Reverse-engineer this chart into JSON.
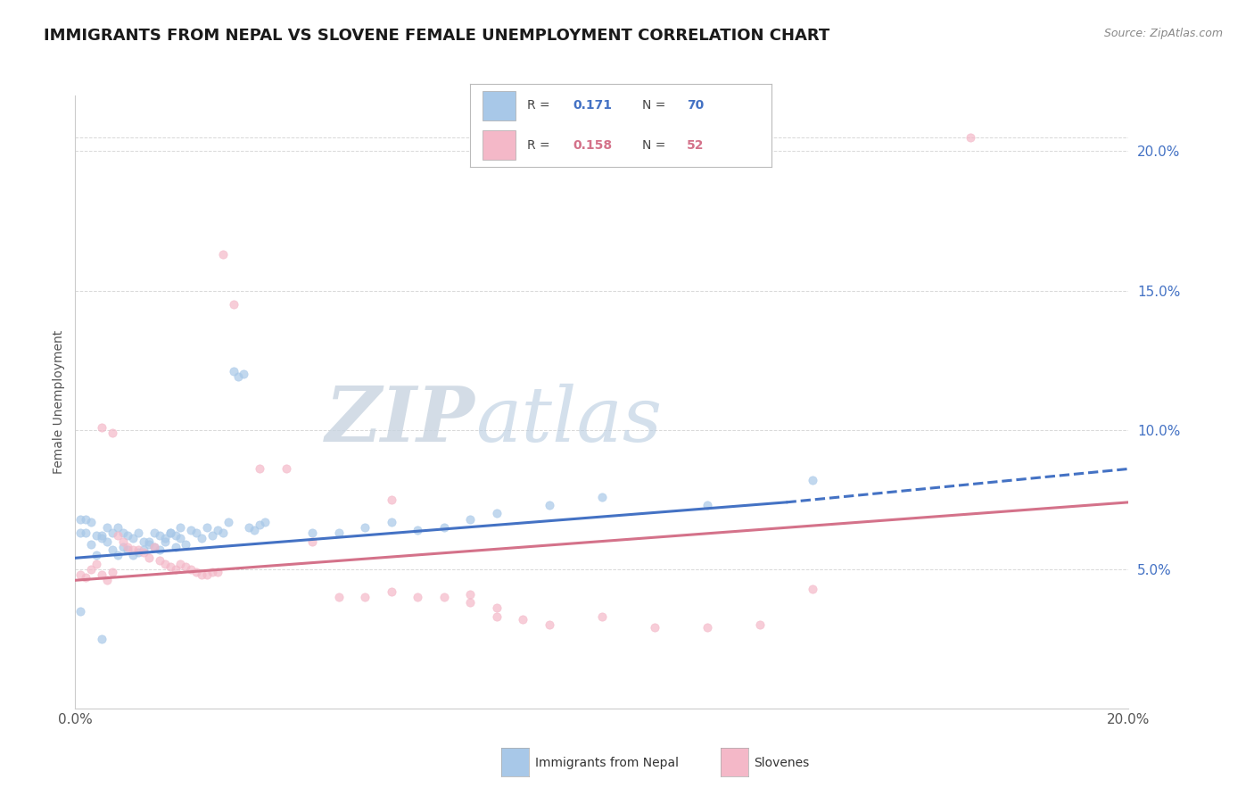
{
  "title": "IMMIGRANTS FROM NEPAL VS SLOVENE FEMALE UNEMPLOYMENT CORRELATION CHART",
  "source": "Source: ZipAtlas.com",
  "ylabel": "Female Unemployment",
  "legend_items": [
    {
      "label": "Immigrants from Nepal",
      "color": "#a8c8e8",
      "R": "0.171",
      "N": "70"
    },
    {
      "label": "Slovenes",
      "color": "#f4b8c8",
      "R": "0.158",
      "N": "52"
    }
  ],
  "watermark_zip": "ZIP",
  "watermark_atlas": "atlas",
  "xmin": 0.0,
  "xmax": 0.2,
  "ymin": 0.0,
  "ymax": 0.22,
  "yticks": [
    0.05,
    0.1,
    0.15,
    0.2
  ],
  "ytick_labels": [
    "5.0%",
    "10.0%",
    "15.0%",
    "20.0%"
  ],
  "nepal_scatter": [
    [
      0.001,
      0.068
    ],
    [
      0.002,
      0.068
    ],
    [
      0.001,
      0.063
    ],
    [
      0.003,
      0.067
    ],
    [
      0.002,
      0.063
    ],
    [
      0.004,
      0.062
    ],
    [
      0.003,
      0.059
    ],
    [
      0.005,
      0.062
    ],
    [
      0.004,
      0.055
    ],
    [
      0.006,
      0.065
    ],
    [
      0.005,
      0.061
    ],
    [
      0.007,
      0.063
    ],
    [
      0.008,
      0.065
    ],
    [
      0.006,
      0.06
    ],
    [
      0.009,
      0.063
    ],
    [
      0.007,
      0.057
    ],
    [
      0.01,
      0.062
    ],
    [
      0.009,
      0.058
    ],
    [
      0.011,
      0.061
    ],
    [
      0.008,
      0.055
    ],
    [
      0.012,
      0.063
    ],
    [
      0.01,
      0.057
    ],
    [
      0.013,
      0.06
    ],
    [
      0.014,
      0.059
    ],
    [
      0.012,
      0.056
    ],
    [
      0.015,
      0.063
    ],
    [
      0.011,
      0.055
    ],
    [
      0.016,
      0.062
    ],
    [
      0.013,
      0.057
    ],
    [
      0.017,
      0.061
    ],
    [
      0.015,
      0.058
    ],
    [
      0.018,
      0.063
    ],
    [
      0.014,
      0.06
    ],
    [
      0.019,
      0.062
    ],
    [
      0.016,
      0.057
    ],
    [
      0.02,
      0.065
    ],
    [
      0.017,
      0.06
    ],
    [
      0.018,
      0.063
    ],
    [
      0.019,
      0.058
    ],
    [
      0.02,
      0.061
    ],
    [
      0.022,
      0.064
    ],
    [
      0.021,
      0.059
    ],
    [
      0.023,
      0.063
    ],
    [
      0.024,
      0.061
    ],
    [
      0.025,
      0.065
    ],
    [
      0.026,
      0.062
    ],
    [
      0.027,
      0.064
    ],
    [
      0.028,
      0.063
    ],
    [
      0.029,
      0.067
    ],
    [
      0.03,
      0.121
    ],
    [
      0.031,
      0.119
    ],
    [
      0.032,
      0.12
    ],
    [
      0.033,
      0.065
    ],
    [
      0.034,
      0.064
    ],
    [
      0.035,
      0.066
    ],
    [
      0.036,
      0.067
    ],
    [
      0.045,
      0.063
    ],
    [
      0.05,
      0.063
    ],
    [
      0.055,
      0.065
    ],
    [
      0.06,
      0.067
    ],
    [
      0.065,
      0.064
    ],
    [
      0.07,
      0.065
    ],
    [
      0.075,
      0.068
    ],
    [
      0.08,
      0.07
    ],
    [
      0.09,
      0.073
    ],
    [
      0.1,
      0.076
    ],
    [
      0.12,
      0.073
    ],
    [
      0.14,
      0.082
    ],
    [
      0.001,
      0.035
    ],
    [
      0.005,
      0.025
    ]
  ],
  "slovene_scatter": [
    [
      0.001,
      0.048
    ],
    [
      0.002,
      0.047
    ],
    [
      0.003,
      0.05
    ],
    [
      0.004,
      0.052
    ],
    [
      0.005,
      0.048
    ],
    [
      0.006,
      0.046
    ],
    [
      0.007,
      0.049
    ],
    [
      0.008,
      0.062
    ],
    [
      0.009,
      0.06
    ],
    [
      0.01,
      0.058
    ],
    [
      0.011,
      0.057
    ],
    [
      0.012,
      0.057
    ],
    [
      0.013,
      0.056
    ],
    [
      0.014,
      0.054
    ],
    [
      0.015,
      0.058
    ],
    [
      0.016,
      0.053
    ],
    [
      0.017,
      0.052
    ],
    [
      0.018,
      0.051
    ],
    [
      0.019,
      0.05
    ],
    [
      0.02,
      0.052
    ],
    [
      0.021,
      0.051
    ],
    [
      0.022,
      0.05
    ],
    [
      0.023,
      0.049
    ],
    [
      0.024,
      0.048
    ],
    [
      0.025,
      0.048
    ],
    [
      0.026,
      0.049
    ],
    [
      0.027,
      0.049
    ],
    [
      0.005,
      0.101
    ],
    [
      0.007,
      0.099
    ],
    [
      0.028,
      0.163
    ],
    [
      0.03,
      0.145
    ],
    [
      0.035,
      0.086
    ],
    [
      0.04,
      0.086
    ],
    [
      0.045,
      0.06
    ],
    [
      0.05,
      0.04
    ],
    [
      0.055,
      0.04
    ],
    [
      0.06,
      0.042
    ],
    [
      0.065,
      0.04
    ],
    [
      0.07,
      0.04
    ],
    [
      0.075,
      0.041
    ],
    [
      0.08,
      0.033
    ],
    [
      0.085,
      0.032
    ],
    [
      0.09,
      0.03
    ],
    [
      0.1,
      0.033
    ],
    [
      0.11,
      0.029
    ],
    [
      0.12,
      0.029
    ],
    [
      0.13,
      0.03
    ],
    [
      0.14,
      0.043
    ],
    [
      0.06,
      0.075
    ],
    [
      0.075,
      0.038
    ],
    [
      0.08,
      0.036
    ],
    [
      0.17,
      0.205
    ]
  ],
  "nepal_line_solid": {
    "x": [
      0.0,
      0.135
    ],
    "y": [
      0.054,
      0.074
    ]
  },
  "nepal_line_dashed": {
    "x": [
      0.135,
      0.2
    ],
    "y": [
      0.074,
      0.086
    ]
  },
  "slovene_line": {
    "x": [
      0.0,
      0.2
    ],
    "y": [
      0.046,
      0.074
    ]
  },
  "nepal_color": "#a8c8e8",
  "slovene_color": "#f4b8c8",
  "nepal_line_color": "#4472c4",
  "slovene_line_color": "#d4728a",
  "background_color": "#ffffff",
  "grid_color": "#d8d8d8",
  "title_fontsize": 13,
  "axis_label_fontsize": 10,
  "tick_fontsize": 11,
  "legend_R_color": "#4472c4",
  "legend_N_color": "#4472c4",
  "legend_R2_color": "#d4728a",
  "legend_N2_color": "#d4728a"
}
